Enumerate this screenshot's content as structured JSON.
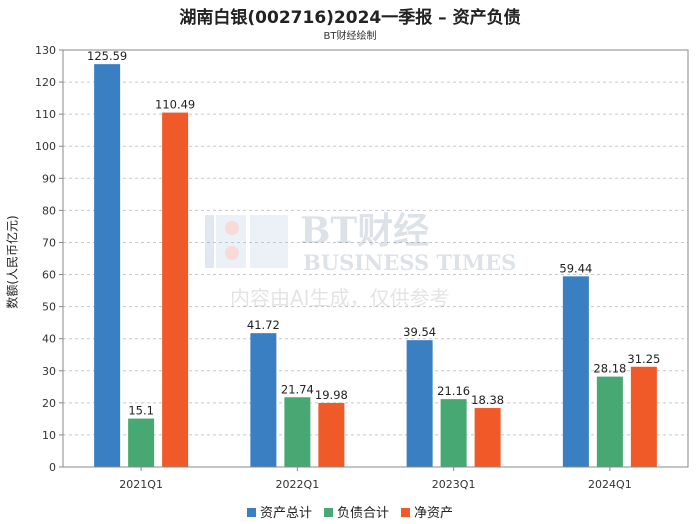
{
  "chart_data": {
    "type": "bar",
    "title": "湖南白银(002716)2024一季报 – 资产负债",
    "subtitle": "BT财经绘制",
    "xlabel": "",
    "ylabel": "数额(人民币亿元)",
    "ylim": [
      0,
      130
    ],
    "yticks": [
      0,
      10,
      20,
      30,
      40,
      50,
      60,
      70,
      80,
      90,
      100,
      110,
      120,
      130
    ],
    "grid": true,
    "legend_position": "bottom",
    "categories": [
      "2021Q1",
      "2022Q1",
      "2023Q1",
      "2024Q1"
    ],
    "series": [
      {
        "name": "资产总计",
        "color": "#3a7fc1",
        "values": [
          125.59,
          41.72,
          39.54,
          59.44
        ],
        "labels": [
          "125.59",
          "41.72",
          "39.54",
          "59.44"
        ]
      },
      {
        "name": "负债合计",
        "color": "#47a873",
        "values": [
          15.1,
          21.74,
          21.16,
          28.18
        ],
        "labels": [
          "15.1",
          "21.74",
          "21.16",
          "28.18"
        ]
      },
      {
        "name": "净资产",
        "color": "#f05a28",
        "values": [
          110.49,
          19.98,
          18.38,
          31.25
        ],
        "labels": [
          "110.49",
          "19.98",
          "18.38",
          "31.25"
        ]
      }
    ]
  },
  "watermark": {
    "logo_text": "BT财经",
    "logo_subtext": "BUSINESS TIMES",
    "notice": "内容由AI生成，仅供参考"
  }
}
